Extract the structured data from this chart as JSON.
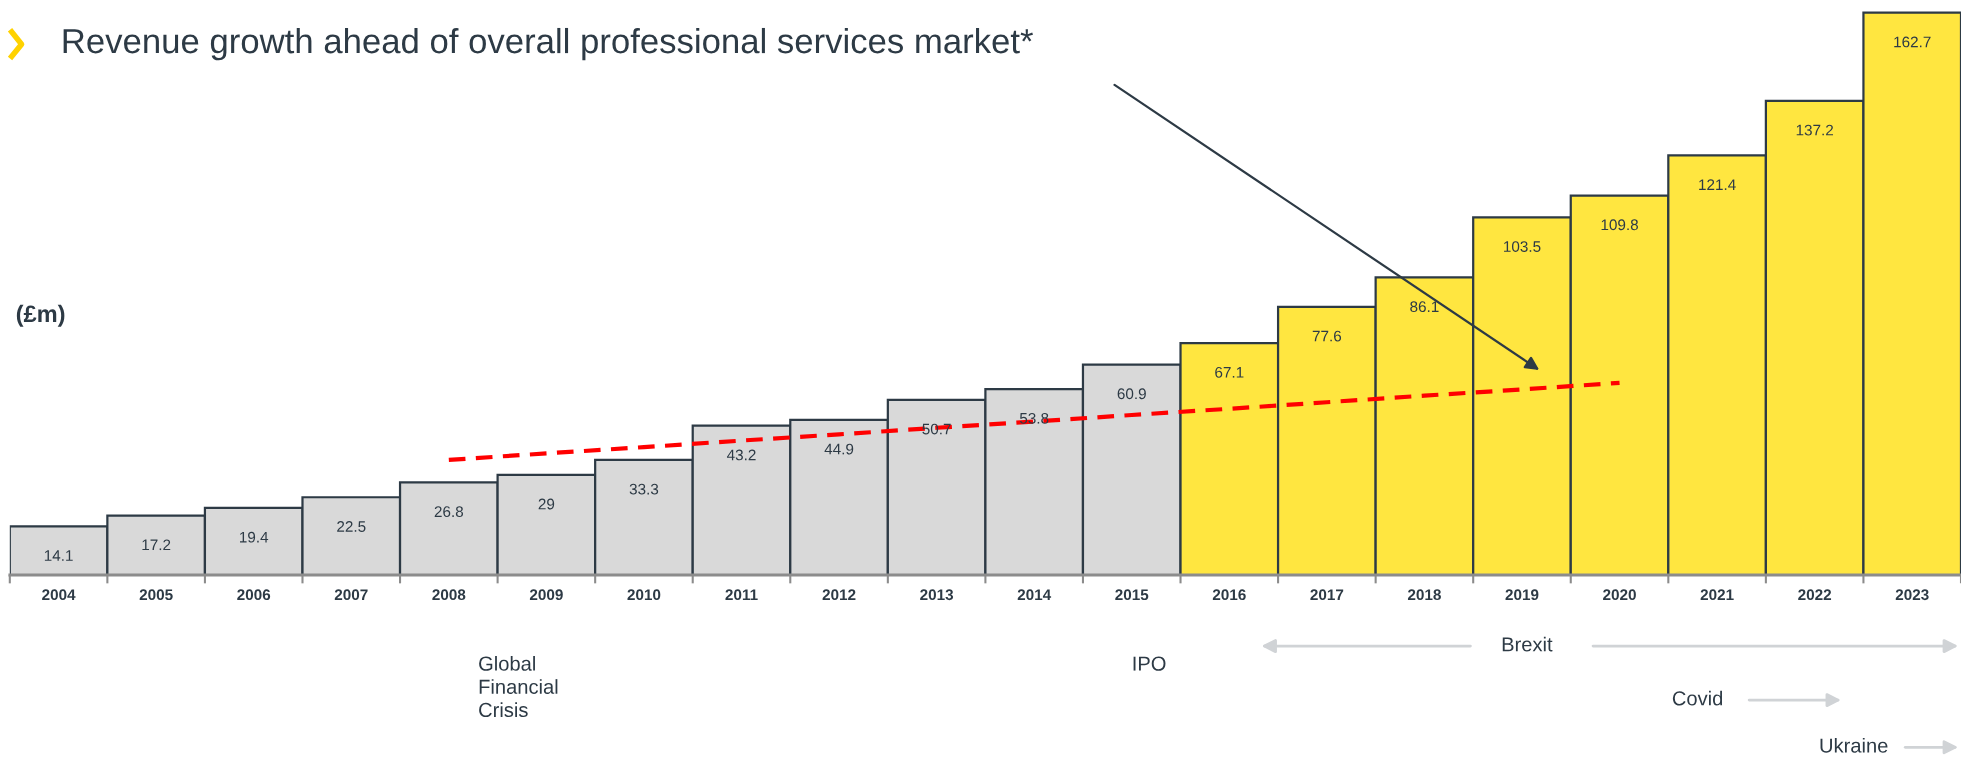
{
  "chart_data": {
    "type": "bar",
    "ylabel": "(£m)",
    "categories": [
      "2004",
      "2005",
      "2006",
      "2007",
      "2008",
      "2009",
      "2010",
      "2011",
      "2012",
      "2013",
      "2014",
      "2015",
      "2016",
      "2017",
      "2018",
      "2019",
      "2020",
      "2021",
      "2022",
      "2023"
    ],
    "values": [
      14.1,
      17.2,
      19.4,
      22.5,
      26.8,
      29,
      33.3,
      43.2,
      44.9,
      50.7,
      53.8,
      60.9,
      67.1,
      77.6,
      86.1,
      103.5,
      109.8,
      121.4,
      137.2,
      162.7
    ],
    "colors": [
      "#d9d9d9",
      "#d9d9d9",
      "#d9d9d9",
      "#d9d9d9",
      "#d9d9d9",
      "#d9d9d9",
      "#d9d9d9",
      "#d9d9d9",
      "#d9d9d9",
      "#d9d9d9",
      "#d9d9d9",
      "#d9d9d9",
      "#ffe640",
      "#ffe640",
      "#ffe640",
      "#ffe640",
      "#ffe640",
      "#ffe640",
      "#ffe640",
      "#ffe640"
    ],
    "value_labels": [
      "14.1",
      "17.2",
      "19.4",
      "22.5",
      "26.8",
      "29",
      "33.3",
      "43.2",
      "44.9",
      "50.7",
      "53.8",
      "60.9",
      "67.1",
      "77.6",
      "86.1",
      "103.5",
      "109.8",
      "121.4",
      "137.2",
      "162.7"
    ],
    "series": [
      {
        "type": "line",
        "values": [
          null,
          null,
          null,
          null,
          33.3,
          35.2,
          37.0,
          38.9,
          40.7,
          42.6,
          44.4,
          46.3,
          48.1,
          50.0,
          51.9,
          53.7,
          55.6,
          null,
          null,
          null
        ],
        "color": "#ff0000",
        "line_style": "dashed"
      }
    ],
    "annotations": [
      "Revenue growth ahead of overall professional services market*",
      "Global\nFinancial\nCrisis",
      "IPO",
      "Brexit",
      "Covid",
      "Ukraine"
    ],
    "grid": false,
    "legend": false
  }
}
